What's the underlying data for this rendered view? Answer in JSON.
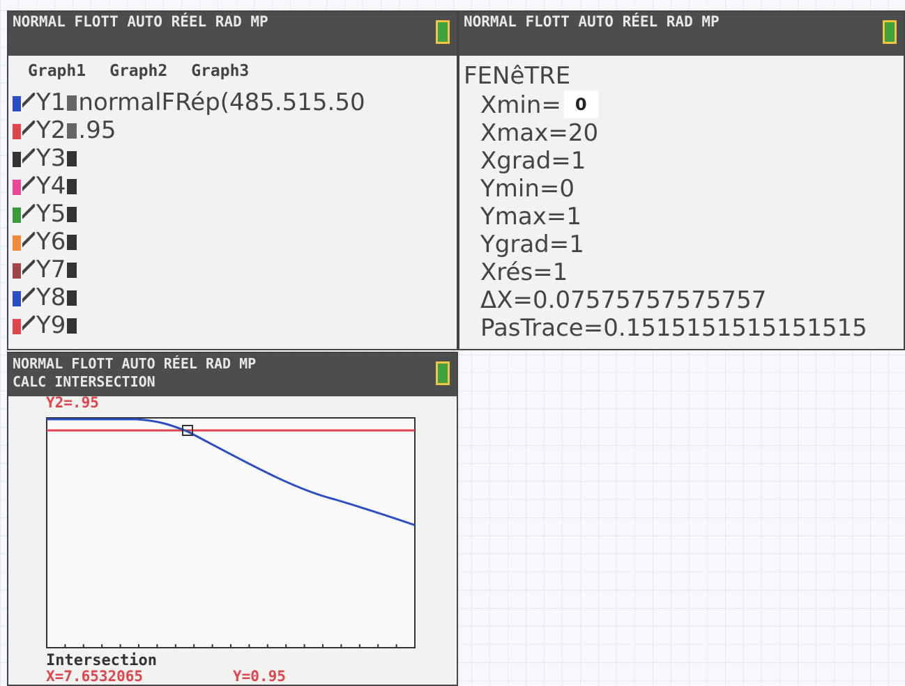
{
  "y_editor": {
    "status": "NORMAL FLOTT AUTO RÉEL RAD MP",
    "tabs": [
      "Graph1",
      "Graph2",
      "Graph3"
    ],
    "functions": [
      {
        "name": "Y1",
        "expression": "normalFRép(485.515.50",
        "color": "#2a4fc4"
      },
      {
        "name": "Y2",
        "expression": ".95",
        "color": "#e0444c"
      },
      {
        "name": "Y3",
        "color": "#333333"
      },
      {
        "name": "Y4",
        "color": "#e8489a"
      },
      {
        "name": "Y5",
        "color": "#3a9a3a"
      },
      {
        "name": "Y6",
        "color": "#f08a3c"
      },
      {
        "name": "Y7",
        "color": "#a04848"
      },
      {
        "name": "Y8",
        "color": "#2a4fc4"
      },
      {
        "name": "Y9",
        "color": "#e0444c"
      }
    ]
  },
  "window": {
    "status": "NORMAL FLOTT AUTO RÉEL RAD MP",
    "title": "FENêTRE",
    "settings": [
      {
        "label": "Xmin=",
        "value": "0"
      },
      {
        "label": "Xmax=",
        "value": "20"
      },
      {
        "label": "Xgrad=",
        "value": "1"
      },
      {
        "label": "Ymin=",
        "value": "0"
      },
      {
        "label": "Ymax=",
        "value": "1"
      },
      {
        "label": "Ygrad=",
        "value": "1"
      },
      {
        "label": "Xrés=",
        "value": "1"
      },
      {
        "label": "ΔX=",
        "value": "0.07575757575757"
      },
      {
        "label": "PasTrace=",
        "value": "0.1515151515151515"
      }
    ]
  },
  "graph": {
    "status": "NORMAL FLOTT AUTO RÉEL RAD MP",
    "mode": "CALC INTERSECTION",
    "function_label": "Y2=.95",
    "result_title": "Intersection",
    "x_result": "X=7.6532065",
    "y_result": "Y=0.95"
  }
}
